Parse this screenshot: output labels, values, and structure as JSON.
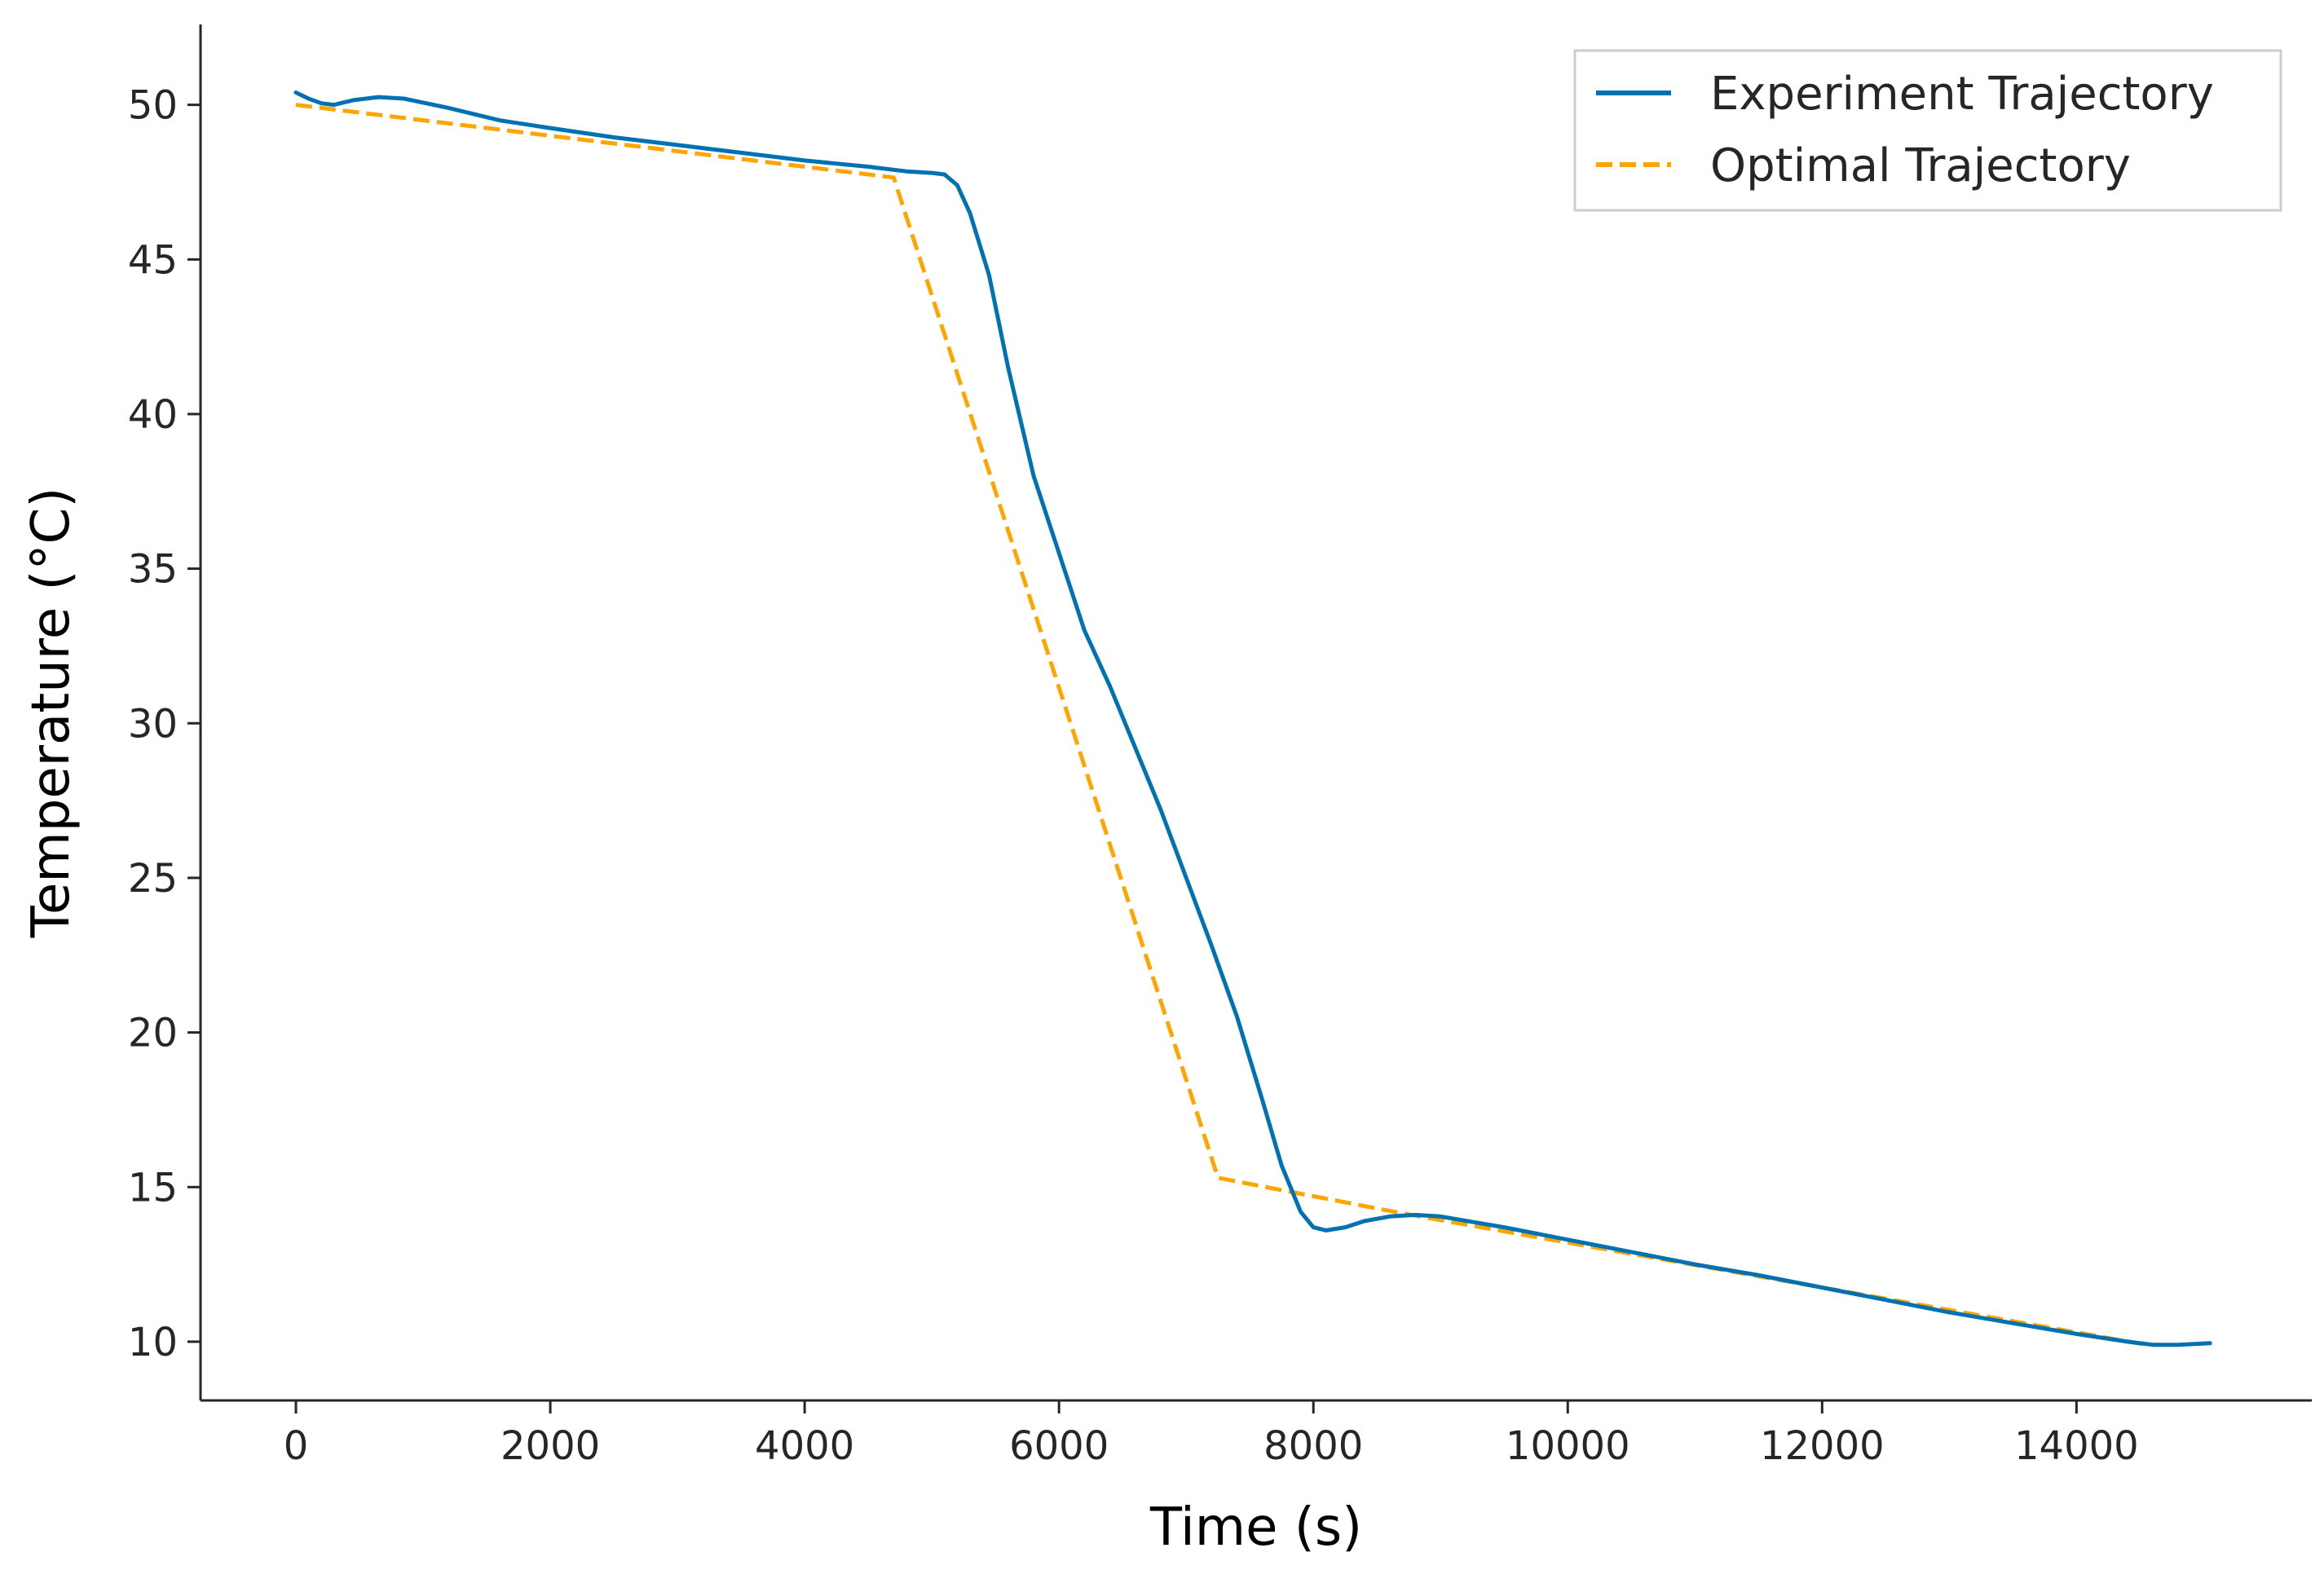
{
  "chart_data": {
    "type": "line",
    "title": "",
    "xlabel": "Time (s)",
    "ylabel": "Temperature (°C)",
    "xlim": [
      -750,
      15850
    ],
    "ylim": [
      8.1,
      52.6
    ],
    "xticks": [
      0,
      2000,
      4000,
      6000,
      8000,
      10000,
      12000,
      14000
    ],
    "yticks": [
      10,
      15,
      20,
      25,
      30,
      35,
      40,
      45,
      50
    ],
    "grid": false,
    "legend": "top-right",
    "series": [
      {
        "name": "Experiment Trajectory",
        "color": "#0072b2",
        "style": "solid",
        "points": [
          [
            0,
            50.4
          ],
          [
            100,
            50.2
          ],
          [
            200,
            50.05
          ],
          [
            300,
            50.0
          ],
          [
            450,
            50.15
          ],
          [
            650,
            50.25
          ],
          [
            850,
            50.2
          ],
          [
            1200,
            49.9
          ],
          [
            1600,
            49.5
          ],
          [
            2000,
            49.25
          ],
          [
            2500,
            48.95
          ],
          [
            3000,
            48.7
          ],
          [
            3500,
            48.45
          ],
          [
            4000,
            48.2
          ],
          [
            4500,
            48.0
          ],
          [
            4800,
            47.85
          ],
          [
            5000,
            47.8
          ],
          [
            5100,
            47.75
          ],
          [
            5200,
            47.4
          ],
          [
            5300,
            46.5
          ],
          [
            5450,
            44.5
          ],
          [
            5600,
            41.5
          ],
          [
            5800,
            38.0
          ],
          [
            6000,
            35.5
          ],
          [
            6200,
            33.0
          ],
          [
            6400,
            31.2
          ],
          [
            6600,
            29.2
          ],
          [
            6800,
            27.2
          ],
          [
            7000,
            25.0
          ],
          [
            7200,
            22.8
          ],
          [
            7400,
            20.5
          ],
          [
            7600,
            17.8
          ],
          [
            7750,
            15.7
          ],
          [
            7900,
            14.2
          ],
          [
            8000,
            13.7
          ],
          [
            8100,
            13.6
          ],
          [
            8250,
            13.7
          ],
          [
            8400,
            13.9
          ],
          [
            8600,
            14.05
          ],
          [
            8800,
            14.1
          ],
          [
            9000,
            14.05
          ],
          [
            9500,
            13.7
          ],
          [
            10000,
            13.3
          ],
          [
            10500,
            12.9
          ],
          [
            11000,
            12.5
          ],
          [
            11500,
            12.15
          ],
          [
            12000,
            11.75
          ],
          [
            12500,
            11.35
          ],
          [
            13000,
            10.95
          ],
          [
            13500,
            10.6
          ],
          [
            14000,
            10.25
          ],
          [
            14400,
            10.0
          ],
          [
            14600,
            9.9
          ],
          [
            14800,
            9.9
          ],
          [
            15050,
            9.95
          ]
        ]
      },
      {
        "name": "Optimal Trajectory",
        "color": "#ffa500",
        "style": "dashed",
        "points": [
          [
            0,
            50.0
          ],
          [
            4700,
            47.65
          ],
          [
            7250,
            15.3
          ],
          [
            8700,
            14.15
          ],
          [
            14550,
            9.9
          ]
        ]
      }
    ]
  }
}
